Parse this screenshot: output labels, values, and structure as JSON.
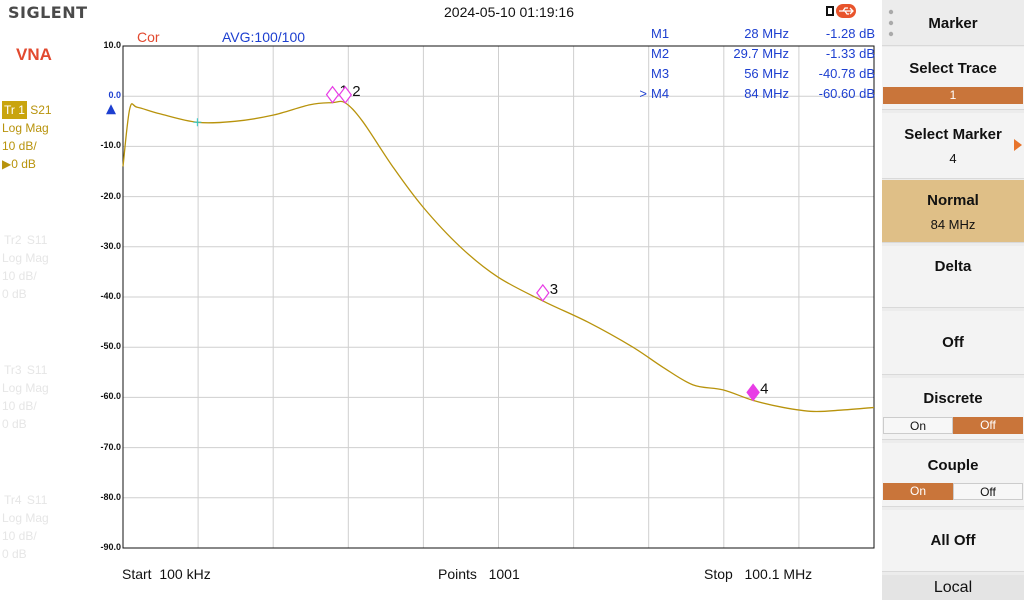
{
  "header": {
    "brand": "SIGLENT",
    "datetime": "2024-05-10 01:19:16",
    "mode": "VNA",
    "cor": "Cor",
    "avg": "AVG:100/100"
  },
  "traces": [
    {
      "name": "Tr 1",
      "param": "S21",
      "format": "Log Mag",
      "scale": "10 dB/",
      "ref": "▶0 dB",
      "active": true
    },
    {
      "name": "Tr2",
      "param": "S11",
      "format": "Log Mag",
      "scale": "10 dB/",
      "ref": "0 dB",
      "active": false
    },
    {
      "name": "Tr3",
      "param": "S11",
      "format": "Log Mag",
      "scale": "10 dB/",
      "ref": "0 dB",
      "active": false
    },
    {
      "name": "Tr4",
      "param": "S11",
      "format": "Log Mag",
      "scale": "10 dB/",
      "ref": "0 dB",
      "active": false
    }
  ],
  "markers": [
    {
      "prefix": "",
      "name": "M1",
      "freq": "28 MHz",
      "value": "-1.28 dB"
    },
    {
      "prefix": "",
      "name": "M2",
      "freq": "29.7 MHz",
      "value": "-1.33 dB"
    },
    {
      "prefix": "",
      "name": "M3",
      "freq": "56 MHz",
      "value": "-40.78 dB"
    },
    {
      "prefix": ">",
      "name": "M4",
      "freq": "84 MHz",
      "value": "-60.60 dB"
    }
  ],
  "axis": {
    "yticks": [
      "10.0",
      "0.0",
      "-10.0",
      "-20.0",
      "-30.0",
      "-40.0",
      "-50.0",
      "-60.0",
      "-70.0",
      "-80.0",
      "-90.0"
    ],
    "start_label": "Start",
    "start_value": "100 kHz",
    "points_label": "Points",
    "points_value": "1001",
    "stop_label": "Stop",
    "stop_value": "100.1 MHz"
  },
  "chart_data": {
    "type": "line",
    "series": [
      {
        "x_mhz": [
          0.1,
          1,
          2,
          5,
          10,
          15,
          20,
          25,
          28,
          29.7,
          32,
          36,
          40,
          45,
          50,
          56,
          62,
          68,
          72,
          76,
          80,
          84,
          88,
          92,
          96,
          100.1
        ],
        "y_db": [
          -14,
          -2.5,
          -2.2,
          -3.5,
          -5.2,
          -5.0,
          -3.8,
          -1.7,
          -1.28,
          -1.33,
          -5,
          -14,
          -22,
          -30,
          -36,
          -40.78,
          -45,
          -50,
          -54,
          -57.5,
          -58.5,
          -60.6,
          -62,
          -62.8,
          -62.5,
          -62
        ]
      }
    ],
    "marker_points": [
      {
        "label": "1",
        "x_mhz": 28,
        "y_db": -1.28
      },
      {
        "label": "2",
        "x_mhz": 29.7,
        "y_db": -1.33
      },
      {
        "label": "3",
        "x_mhz": 56,
        "y_db": -40.78
      },
      {
        "label": "4",
        "x_mhz": 84,
        "y_db": -60.6
      }
    ],
    "ylim": [
      -90,
      10
    ],
    "xlim": [
      0.1,
      100.1
    ],
    "ref_level_db": 0,
    "grid": true,
    "trace_color": "#b8930c",
    "marker_color": "#e83de6"
  },
  "menu": {
    "title": "Marker",
    "select_trace_label": "Select Trace",
    "select_trace_value": "1",
    "select_marker_label": "Select Marker",
    "select_marker_value": "4",
    "normal_label": "Normal",
    "normal_value": "84 MHz",
    "delta_label": "Delta",
    "off_label": "Off",
    "discrete_label": "Discrete",
    "discrete_on": "On",
    "discrete_off": "Off",
    "couple_label": "Couple",
    "couple_on": "On",
    "couple_off": "Off",
    "all_off_label": "All Off",
    "local_label": "Local"
  },
  "colors": {
    "accent": "#c9753a",
    "selected_bg": "#dfbf87",
    "marker_text": "#1d3fd0",
    "cor": "#e2492f"
  }
}
